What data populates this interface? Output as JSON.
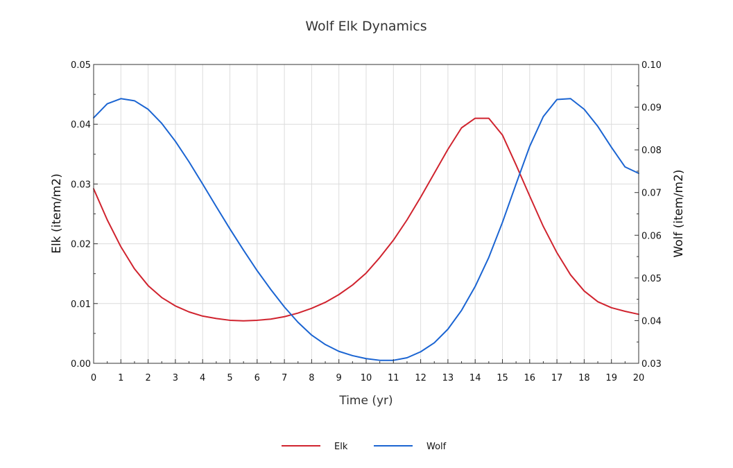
{
  "chart_data": {
    "type": "line",
    "title": "Wolf Elk Dynamics",
    "xlabel": "Time (yr)",
    "ylabel": "Elk (item/m2)",
    "y2label": "Wolf (item/m2)",
    "xlim": [
      0,
      20
    ],
    "ylim": [
      0,
      0.05
    ],
    "y2lim": [
      0.03,
      0.1
    ],
    "grid": true,
    "legend_position": "bottom-center",
    "x_ticks": [
      "0",
      "1",
      "2",
      "3",
      "4",
      "5",
      "6",
      "7",
      "8",
      "9",
      "10",
      "11",
      "12",
      "13",
      "14",
      "15",
      "16",
      "17",
      "18",
      "19",
      "20"
    ],
    "y_ticks": [
      "0.00",
      "0.01",
      "0.02",
      "0.03",
      "0.04",
      "0.05"
    ],
    "y2_ticks": [
      "0.03",
      "0.04",
      "0.05",
      "0.06",
      "0.07",
      "0.08",
      "0.09",
      "0.10"
    ],
    "x": [
      0,
      0.5,
      1,
      1.5,
      2,
      2.5,
      3,
      3.5,
      4,
      4.5,
      5,
      5.5,
      6,
      6.5,
      7,
      7.5,
      8,
      8.5,
      9,
      9.5,
      10,
      10.5,
      11,
      11.5,
      12,
      12.5,
      13,
      13.5,
      14,
      14.5,
      15,
      15.5,
      16,
      16.5,
      17,
      17.5,
      18,
      18.5,
      19,
      19.5,
      20
    ],
    "series": [
      {
        "name": "Elk",
        "axis": "left",
        "color": "#d0232e",
        "values": [
          0.0292,
          0.024,
          0.0195,
          0.0158,
          0.013,
          0.011,
          0.0096,
          0.0086,
          0.0079,
          0.0075,
          0.0072,
          0.0071,
          0.0072,
          0.0074,
          0.0078,
          0.0084,
          0.0092,
          0.0102,
          0.0115,
          0.0131,
          0.0151,
          0.0177,
          0.0206,
          0.024,
          0.0278,
          0.0318,
          0.0358,
          0.0394,
          0.041,
          0.041,
          0.0382,
          0.0332,
          0.028,
          0.0229,
          0.0185,
          0.0148,
          0.0121,
          0.0103,
          0.0093,
          0.0087,
          0.0082
        ]
      },
      {
        "name": "Wolf",
        "axis": "right",
        "color": "#1a64d2",
        "values": [
          0.0875,
          0.0908,
          0.092,
          0.0915,
          0.0895,
          0.0862,
          0.082,
          0.0772,
          0.072,
          0.0667,
          0.0615,
          0.0565,
          0.0517,
          0.0473,
          0.0432,
          0.0396,
          0.0366,
          0.0344,
          0.0328,
          0.0318,
          0.0311,
          0.0307,
          0.0307,
          0.0313,
          0.0327,
          0.0348,
          0.038,
          0.0424,
          0.048,
          0.0548,
          0.063,
          0.072,
          0.0808,
          0.0878,
          0.0918,
          0.092,
          0.0895,
          0.0855,
          0.0806,
          0.076,
          0.0745
        ]
      }
    ]
  }
}
